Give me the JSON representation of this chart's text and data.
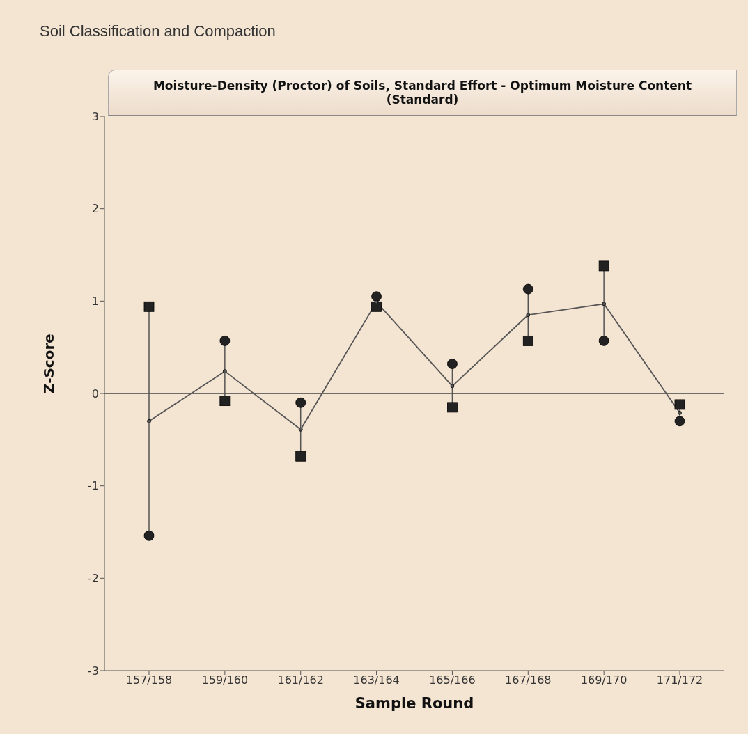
{
  "chart_data": {
    "type": "line",
    "title": "Soil Classification and Compaction",
    "subtitle": "Moisture-Density (Proctor) of Soils, Standard Effort - Optimum Moisture Content (Standard)",
    "xlabel": "Sample Round",
    "ylabel": "Z-Score",
    "categories": [
      "157/158",
      "159/160",
      "161/162",
      "163/164",
      "165/166",
      "167/168",
      "169/170",
      "171/172"
    ],
    "series": [
      {
        "type": "scatter",
        "marker": "circle",
        "color": "#222222",
        "values": [
          -1.54,
          0.57,
          -0.1,
          1.05,
          0.32,
          1.13,
          0.57,
          -0.3
        ]
      },
      {
        "type": "scatter",
        "marker": "square",
        "color": "#222222",
        "values": [
          0.94,
          -0.08,
          -0.68,
          0.94,
          -0.15,
          0.57,
          1.38,
          -0.12
        ]
      },
      {
        "type": "line",
        "marker": "circle",
        "color": "#555555",
        "values": [
          -0.3,
          0.24,
          -0.39,
          0.99,
          0.08,
          0.85,
          0.97,
          -0.21
        ]
      }
    ],
    "ylim": [
      -3,
      3
    ],
    "yticks": [
      -3,
      -2,
      -1,
      0,
      1,
      2,
      3
    ],
    "grid": false,
    "ref_lines": [
      {
        "axis": "y",
        "value": 0,
        "color": "#444444"
      }
    ]
  }
}
